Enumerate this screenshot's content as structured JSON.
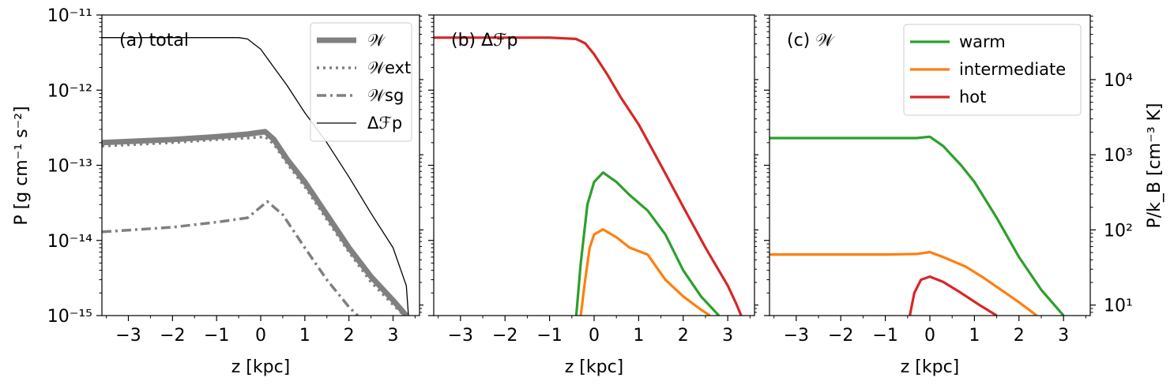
{
  "figure": {
    "y_label_left": "P [g cm⁻¹ s⁻²]",
    "y_label_right": "P/k_B [cm⁻³ K]",
    "x_label": "z [kpc]"
  },
  "chart_data": [
    {
      "type": "line",
      "panel_label": "(a) total",
      "xlabel": "z [kpc]",
      "ylabel": "P [g cm⁻¹ s⁻²]",
      "xlim": [
        -3.6,
        3.6
      ],
      "ylim": [
        1e-15,
        1e-11
      ],
      "yscale": "log",
      "x_ticks": [
        -3,
        -2,
        -1,
        0,
        1,
        2,
        3
      ],
      "y_ticks": [
        "10⁻¹¹",
        "10⁻¹²",
        "10⁻¹³",
        "10⁻¹⁴",
        "10⁻¹⁵"
      ],
      "legend_position": "top-right",
      "series": [
        {
          "name": "𝒲",
          "color": "#808080",
          "style": "solid-thick",
          "x": [
            -3.6,
            -2,
            -1,
            -0.3,
            0.1,
            0.3,
            0.6,
            1.0,
            1.5,
            2.0,
            2.5,
            3.0,
            3.3
          ],
          "y": [
            2e-13,
            2.2e-13,
            2.4e-13,
            2.6e-13,
            2.8e-13,
            2.2e-13,
            1.2e-13,
            6e-14,
            2.2e-14,
            8e-15,
            3.3e-15,
            1.6e-15,
            1e-15
          ]
        },
        {
          "name": "𝒲ext",
          "color": "#808080",
          "style": "dotted",
          "x": [
            -3.6,
            -2,
            -1,
            -0.3,
            0.1,
            0.3,
            0.6,
            1.0,
            1.5,
            2.0,
            2.5,
            3.0,
            3.25
          ],
          "y": [
            1.8e-13,
            2e-13,
            2.2e-13,
            2.3e-13,
            2.4e-13,
            1.9e-13,
            1.05e-13,
            5.2e-14,
            1.9e-14,
            7e-15,
            2.8e-15,
            1.4e-15,
            1e-15
          ]
        },
        {
          "name": "𝒲sg",
          "color": "#808080",
          "style": "dashdot",
          "x": [
            -3.6,
            -2,
            -1,
            -0.3,
            0.15,
            0.5,
            1.0,
            1.5,
            2.0,
            2.2
          ],
          "y": [
            1.3e-14,
            1.5e-14,
            1.75e-14,
            2e-14,
            3.3e-14,
            2.2e-14,
            8e-15,
            3e-15,
            1.3e-15,
            1e-15
          ]
        },
        {
          "name": "Δℱp",
          "color": "#000000",
          "style": "solid-thin",
          "x": [
            -3.6,
            -2,
            -1,
            -0.5,
            -0.3,
            0,
            0.3,
            0.6,
            1.0,
            1.5,
            2.0,
            2.5,
            3.0,
            3.3,
            3.35
          ],
          "y": [
            5e-12,
            5e-12,
            5e-12,
            5e-12,
            4.8e-12,
            3.5e-12,
            2e-12,
            1.15e-12,
            5e-13,
            2e-13,
            7e-14,
            2.3e-14,
            8e-15,
            2.5e-15,
            1e-15
          ]
        }
      ]
    },
    {
      "type": "line",
      "panel_label": "(b) Δℱp",
      "xlabel": "z [kpc]",
      "xlim": [
        -3.6,
        3.6
      ],
      "ylim": [
        1e-15,
        1e-11
      ],
      "yscale": "log",
      "x_ticks": [
        -3,
        -2,
        -1,
        0,
        1,
        2,
        3
      ],
      "series": [
        {
          "color": "#d62728",
          "x": [
            -3.6,
            -2,
            -1,
            -0.4,
            -0.2,
            0,
            0.3,
            0.6,
            1.0,
            1.5,
            2.0,
            2.5,
            3.0,
            3.2,
            3.3
          ],
          "y": [
            5e-12,
            5e-12,
            5e-12,
            4.8e-12,
            4.2e-12,
            3e-12,
            1.6e-12,
            8e-13,
            3.5e-13,
            1e-13,
            2.8e-14,
            8e-15,
            2.5e-15,
            1.4e-15,
            1e-15
          ]
        },
        {
          "color": "#2ca02c",
          "x": [
            -0.4,
            -0.3,
            -0.15,
            0,
            0.2,
            0.5,
            0.8,
            1.2,
            1.6,
            2.0,
            2.4,
            2.8
          ],
          "y": [
            1e-15,
            5e-15,
            3e-14,
            6e-14,
            8e-14,
            6e-14,
            4e-14,
            2.5e-14,
            1.2e-14,
            4e-15,
            1.8e-15,
            1e-15
          ]
        },
        {
          "color": "#ff7f0e",
          "x": [
            -0.3,
            -0.2,
            -0.1,
            0,
            0.2,
            0.5,
            0.8,
            1.2,
            1.6,
            2.0,
            2.4,
            2.6
          ],
          "y": [
            1e-15,
            3e-15,
            8e-15,
            1.2e-14,
            1.4e-14,
            1.1e-14,
            8e-15,
            6.5e-15,
            3e-15,
            1.8e-15,
            1.2e-15,
            1e-15
          ]
        }
      ]
    },
    {
      "type": "line",
      "panel_label": "(c) 𝒲",
      "xlabel": "z [kpc]",
      "ylabel_right": "P/k_B [cm⁻³ K]",
      "xlim": [
        -3.6,
        3.6
      ],
      "ylim": [
        1e-15,
        1e-11
      ],
      "yscale": "log",
      "right_axis_ticks": [
        "10⁴",
        "10³",
        "10²",
        "10¹"
      ],
      "x_ticks": [
        -3,
        -2,
        -1,
        0,
        1,
        2,
        3
      ],
      "legend_position": "top-right",
      "series": [
        {
          "name": "warm",
          "color": "#2ca02c",
          "x": [
            -3.6,
            -2,
            -1,
            -0.3,
            0,
            0.3,
            0.7,
            1.0,
            1.5,
            2.0,
            2.5,
            3.0
          ],
          "y": [
            2.3e-13,
            2.3e-13,
            2.3e-13,
            2.3e-13,
            2.4e-13,
            1.8e-13,
            1e-13,
            6e-14,
            2e-14,
            6e-15,
            2.2e-15,
            1e-15
          ]
        },
        {
          "name": "intermediate",
          "color": "#ff7f0e",
          "x": [
            -3.6,
            -2,
            -1,
            -0.3,
            0,
            0.3,
            0.8,
            1.2,
            1.6,
            2.0,
            2.4
          ],
          "y": [
            6.5e-15,
            6.5e-15,
            6.5e-15,
            6.6e-15,
            7e-15,
            6e-15,
            4.5e-15,
            3.2e-15,
            2.2e-15,
            1.5e-15,
            1e-15
          ]
        },
        {
          "name": "hot",
          "color": "#d62728",
          "x": [
            -0.45,
            -0.35,
            -0.2,
            0,
            0.3,
            0.7,
            1.1,
            1.5
          ],
          "y": [
            1e-15,
            2e-15,
            3e-15,
            3.3e-15,
            2.8e-15,
            2e-15,
            1.4e-15,
            1e-15
          ]
        }
      ]
    }
  ]
}
